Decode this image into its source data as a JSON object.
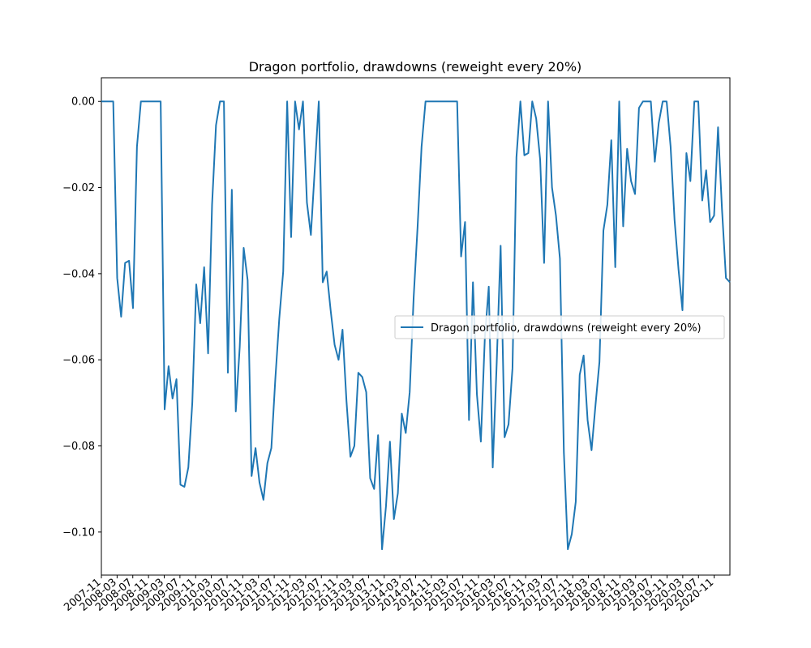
{
  "chart_data": {
    "type": "line",
    "title": "Dragon portfolio, drawdowns (reweight every 20%)",
    "xlabel": "",
    "ylabel": "",
    "x_start": "2007-11",
    "x_end": "2021-03",
    "ylim": [
      -0.11,
      0.0055
    ],
    "y_ticks": [
      0.0,
      -0.02,
      -0.04,
      -0.06,
      -0.08,
      -0.1
    ],
    "y_tick_labels": [
      "0.00",
      "−0.02",
      "−0.04",
      "−0.06",
      "−0.08",
      "−0.10"
    ],
    "x_tick_labels": [
      "2007-11",
      "2008-03",
      "2008-07",
      "2008-11",
      "2009-03",
      "2009-07",
      "2009-11",
      "2010-03",
      "2010-07",
      "2010-11",
      "2011-03",
      "2011-07",
      "2011-11",
      "2012-03",
      "2012-07",
      "2012-11",
      "2013-03",
      "2013-07",
      "2013-11",
      "2014-03",
      "2014-07",
      "2014-11",
      "2015-03",
      "2015-07",
      "2015-11",
      "2016-03",
      "2016-07",
      "2016-11",
      "2017-03",
      "2017-07",
      "2017-11",
      "2018-03",
      "2018-07",
      "2018-11",
      "2019-03",
      "2019-07",
      "2019-11",
      "2020-03",
      "2020-07",
      "2020-11"
    ],
    "grid": false,
    "legend_position": "center-right",
    "series": [
      {
        "name": "Dragon portfolio, drawdowns (reweight every 20%)",
        "color": "#1f77b4",
        "values": [
          0.0,
          0.0,
          0.0,
          0.0,
          -0.041,
          -0.05,
          -0.0375,
          -0.037,
          -0.048,
          -0.0105,
          0.0,
          0.0,
          0.0,
          0.0,
          0.0,
          0.0,
          -0.0715,
          -0.0615,
          -0.069,
          -0.0645,
          -0.089,
          -0.0895,
          -0.085,
          -0.07,
          -0.0425,
          -0.0515,
          -0.0385,
          -0.0585,
          -0.024,
          -0.0055,
          0.0,
          0.0,
          -0.063,
          -0.0205,
          -0.072,
          -0.057,
          -0.034,
          -0.0415,
          -0.087,
          -0.0805,
          -0.0885,
          -0.0925,
          -0.084,
          -0.0805,
          -0.0645,
          -0.0505,
          -0.0395,
          0.0,
          -0.0315,
          0.0,
          -0.0065,
          0.0,
          -0.0235,
          -0.031,
          -0.0155,
          0.0,
          -0.042,
          -0.0395,
          -0.0485,
          -0.0565,
          -0.06,
          -0.053,
          -0.0695,
          -0.0825,
          -0.08,
          -0.063,
          -0.064,
          -0.0675,
          -0.0875,
          -0.09,
          -0.0775,
          -0.104,
          -0.094,
          -0.079,
          -0.097,
          -0.091,
          -0.0725,
          -0.077,
          -0.0675,
          -0.0455,
          -0.029,
          -0.0105,
          0.0,
          0.0,
          0.0,
          0.0,
          0.0,
          0.0,
          0.0,
          0.0,
          0.0,
          -0.036,
          -0.028,
          -0.074,
          -0.042,
          -0.068,
          -0.079,
          -0.055,
          -0.043,
          -0.085,
          -0.061,
          -0.0335,
          -0.078,
          -0.075,
          -0.062,
          -0.013,
          0.0,
          -0.0125,
          -0.012,
          0.0,
          -0.004,
          -0.0135,
          -0.0375,
          0.0,
          -0.02,
          -0.0265,
          -0.0365,
          -0.0815,
          -0.104,
          -0.1005,
          -0.093,
          -0.0635,
          -0.059,
          -0.074,
          -0.081,
          -0.0705,
          -0.0605,
          -0.03,
          -0.024,
          -0.009,
          -0.0385,
          0.0,
          -0.029,
          -0.011,
          -0.0185,
          -0.0215,
          -0.0015,
          0.0,
          0.0,
          0.0,
          -0.014,
          -0.005,
          0.0,
          0.0,
          -0.0105,
          -0.0275,
          -0.039,
          -0.0485,
          -0.012,
          -0.0185,
          0.0,
          0.0,
          -0.023,
          -0.016,
          -0.028,
          -0.0265,
          -0.006,
          -0.025,
          -0.041,
          -0.042
        ]
      }
    ]
  }
}
